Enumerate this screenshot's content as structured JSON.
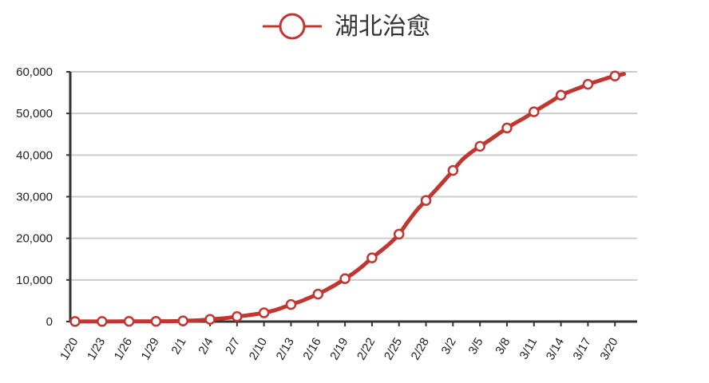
{
  "chart_data": {
    "type": "line",
    "title": "",
    "xlabel": "",
    "ylabel": "",
    "ylim": [
      0,
      60000
    ],
    "y_ticks": [
      0,
      10000,
      20000,
      30000,
      40000,
      50000,
      60000
    ],
    "y_tick_labels": [
      "0",
      "10,000",
      "20,000",
      "30,000",
      "40,000",
      "50,000",
      "60,000"
    ],
    "x_tick_labels": [
      "1/20",
      "1/23",
      "1/26",
      "1/29",
      "2/1",
      "2/4",
      "2/7",
      "2/10",
      "2/13",
      "2/16",
      "2/19",
      "2/22",
      "2/25",
      "2/28",
      "3/2",
      "3/5",
      "3/8",
      "3/11",
      "3/14",
      "3/17",
      "3/20"
    ],
    "grid": true,
    "legend_position": "top-center",
    "series": [
      {
        "name": "湖北治愈",
        "color": "#c23531",
        "marker": "hollow-circle",
        "marker_every": 3,
        "x_dates": [
          "1/20",
          "1/21",
          "1/22",
          "1/23",
          "1/24",
          "1/25",
          "1/26",
          "1/27",
          "1/28",
          "1/29",
          "1/30",
          "1/31",
          "2/1",
          "2/2",
          "2/3",
          "2/4",
          "2/5",
          "2/6",
          "2/7",
          "2/8",
          "2/9",
          "2/10",
          "2/11",
          "2/12",
          "2/13",
          "2/14",
          "2/15",
          "2/16",
          "2/17",
          "2/18",
          "2/19",
          "2/20",
          "2/21",
          "2/22",
          "2/23",
          "2/24",
          "2/25",
          "2/26",
          "2/27",
          "2/28",
          "2/29",
          "3/1",
          "3/2",
          "3/3",
          "3/4",
          "3/5",
          "3/6",
          "3/7",
          "3/8",
          "3/9",
          "3/10",
          "3/11",
          "3/12",
          "3/13",
          "3/14",
          "3/15",
          "3/16",
          "3/17",
          "3/18",
          "3/19",
          "3/20",
          "3/21"
        ],
        "values": [
          25,
          25,
          28,
          31,
          32,
          39,
          42,
          44,
          47,
          58,
          70,
          90,
          160,
          250,
          330,
          520,
          700,
          900,
          1200,
          1450,
          1750,
          2100,
          2600,
          3300,
          4100,
          4800,
          5700,
          6600,
          7700,
          8900,
          10300,
          11700,
          13400,
          15300,
          17000,
          18800,
          21000,
          24000,
          26800,
          29100,
          31400,
          33800,
          36300,
          38800,
          40600,
          42100,
          43500,
          45000,
          46500,
          47800,
          49000,
          50400,
          51700,
          53000,
          54400,
          55300,
          56100,
          57000,
          57700,
          58400,
          59000,
          59500
        ]
      }
    ]
  }
}
